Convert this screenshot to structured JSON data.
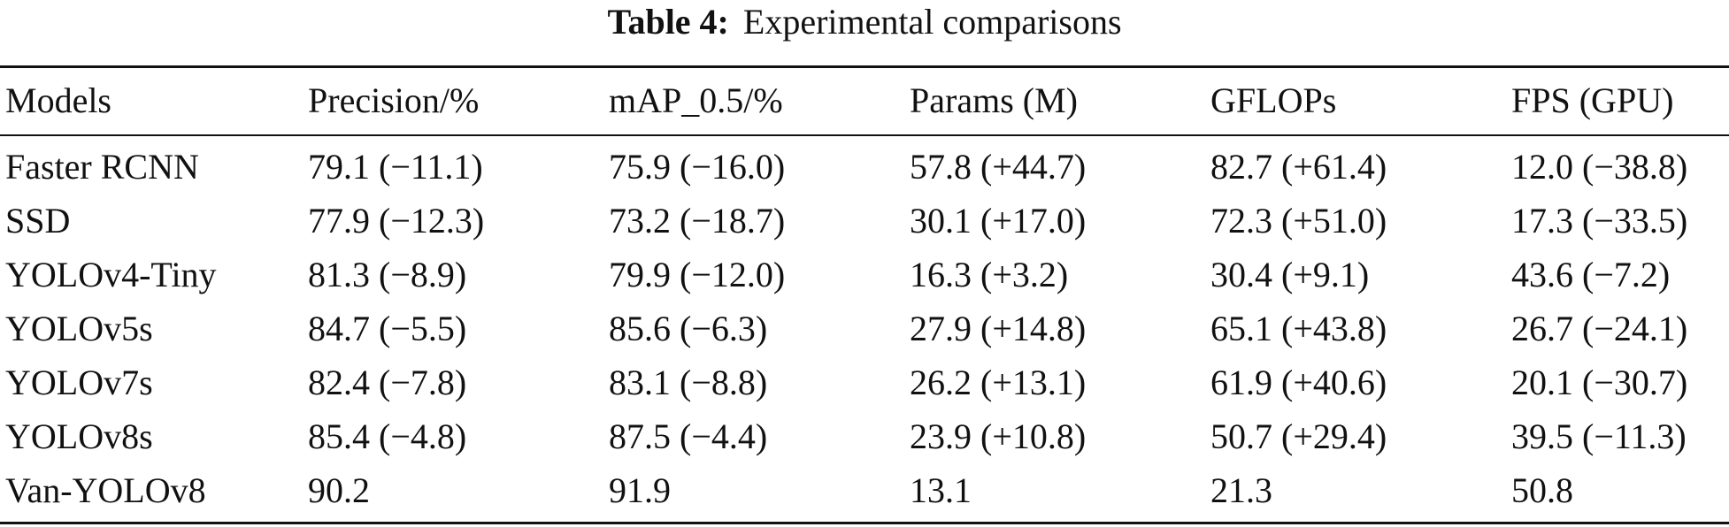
{
  "caption": {
    "label": "Table 4:",
    "title": "Experimental comparisons"
  },
  "table": {
    "columns": [
      "Models",
      "Precision/%",
      "mAP_0.5/%",
      "Params (M)",
      "GFLOPs",
      "FPS (GPU)"
    ],
    "rows": [
      [
        "Faster RCNN",
        "79.1 (−11.1)",
        "75.9 (−16.0)",
        "57.8 (+44.7)",
        "82.7 (+61.4)",
        "12.0 (−38.8)"
      ],
      [
        "SSD",
        "77.9 (−12.3)",
        "73.2 (−18.7)",
        "30.1 (+17.0)",
        "72.3 (+51.0)",
        "17.3 (−33.5)"
      ],
      [
        "YOLOv4-Tiny",
        "81.3 (−8.9)",
        "79.9 (−12.0)",
        "16.3 (+3.2)",
        "30.4 (+9.1)",
        "43.6 (−7.2)"
      ],
      [
        "YOLOv5s",
        "84.7 (−5.5)",
        "85.6 (−6.3)",
        "27.9 (+14.8)",
        "65.1 (+43.8)",
        "26.7 (−24.1)"
      ],
      [
        "YOLOv7s",
        "82.4 (−7.8)",
        "83.1 (−8.8)",
        "26.2 (+13.1)",
        "61.9 (+40.6)",
        "20.1 (−30.7)"
      ],
      [
        "YOLOv8s",
        "85.4 (−4.8)",
        "87.5 (−4.4)",
        "23.9 (+10.8)",
        "50.7 (+29.4)",
        "39.5 (−11.3)"
      ],
      [
        "Van-YOLOv8",
        "90.2",
        "91.9",
        "13.1",
        "21.3",
        "50.8"
      ]
    ]
  }
}
